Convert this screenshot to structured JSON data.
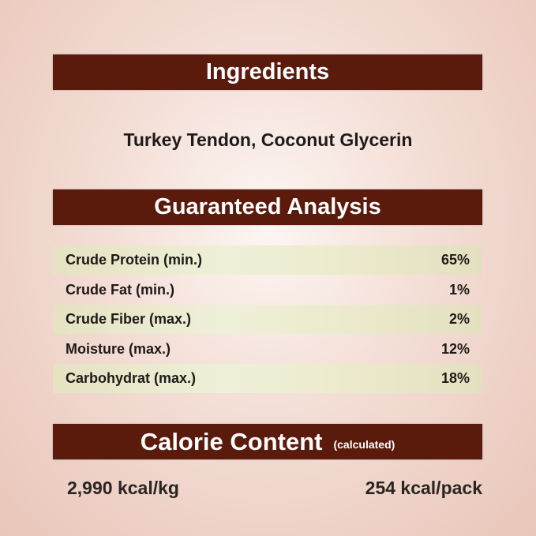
{
  "ingredients": {
    "title": "Ingredients",
    "text": "Turkey Tendon, Coconut Glycerin"
  },
  "analysis": {
    "title": "Guaranteed Analysis",
    "rows": [
      {
        "label": "Crude Protein (min.)",
        "value": "65%"
      },
      {
        "label": "Crude Fat (min.)",
        "value": "1%"
      },
      {
        "label": "Crude Fiber (max.)",
        "value": "2%"
      },
      {
        "label": "Moisture (max.)",
        "value": "12%"
      },
      {
        "label": "Carbohydrat (max.)",
        "value": "18%"
      }
    ]
  },
  "calorie": {
    "title": "Calorie Content",
    "subtitle": "(calculated)",
    "per_kg": "2,990 kcal/kg",
    "per_pack": "254 kcal/pack"
  },
  "colors": {
    "banner": "#5a1a0c",
    "row_shade": "#eceacc"
  }
}
